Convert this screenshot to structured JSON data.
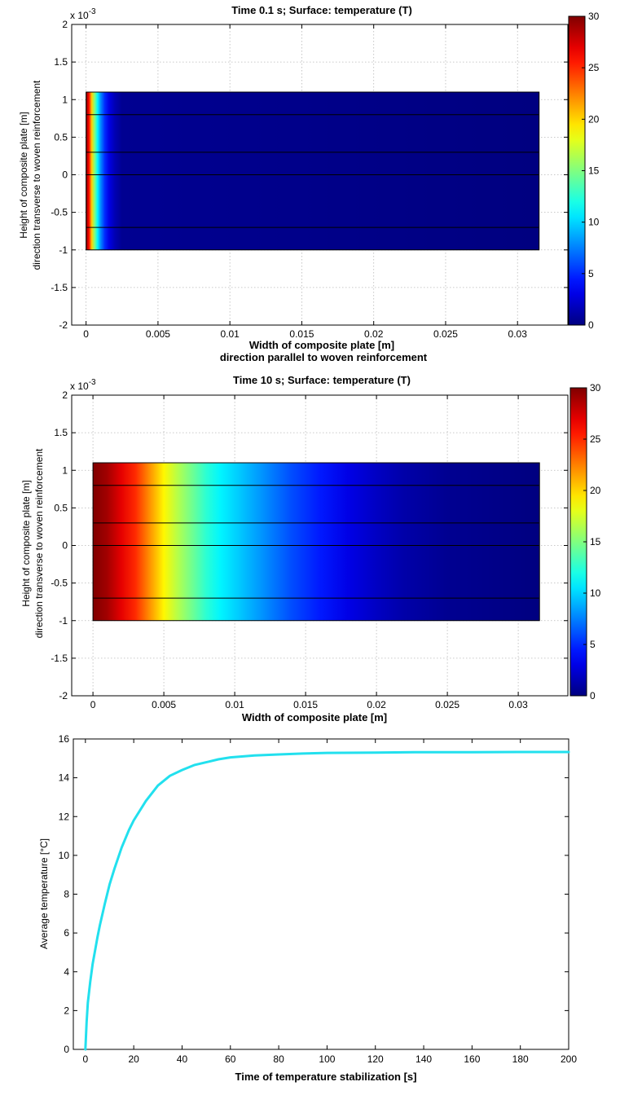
{
  "colors": {
    "curve": "#22e0ee",
    "outline": "#000000",
    "grid": "#b8b8b8",
    "colormap": "jet"
  },
  "chart_data": [
    {
      "type": "heatmap",
      "title": "Time 0.1 s; Surface: temperature (T)",
      "xlabel": "Width of composite plate [m]",
      "xlabel2": "direction parallel to woven reinforcement",
      "ylabel": "Height of composite plate [m]",
      "ylabel2": "direction transverse to woven reinforcement",
      "y_exponent_base": "x 10",
      "y_exponent_power": "-3",
      "xlim": [
        -0.001,
        0.0335
      ],
      "ylim": [
        -2,
        2
      ],
      "xticks": [
        0,
        0.005,
        0.01,
        0.015,
        0.02,
        0.025,
        0.03
      ],
      "xtick_labels": [
        "0",
        "0.005",
        "0.01",
        "0.015",
        "0.02",
        "0.025",
        "0.03"
      ],
      "yticks": [
        -2,
        -1.5,
        -1,
        -0.5,
        0,
        0.5,
        1,
        1.5,
        2
      ],
      "ytick_labels": [
        "-2",
        "-1.5",
        "-1",
        "-0.5",
        "0",
        "0.5",
        "1",
        "1.5",
        "2"
      ],
      "grid": true,
      "plate": {
        "x": [
          0,
          0.0315
        ],
        "y": [
          -1,
          1.1
        ],
        "layer_lines_y": [
          0.8,
          0.3,
          0,
          -0.7
        ]
      },
      "temperature_profile": {
        "x": [
          0,
          0.0002,
          0.0004,
          0.0006,
          0.0008,
          0.001,
          0.0013,
          0.0016,
          0.002,
          0.0025,
          0.0315
        ],
        "T": [
          30,
          26,
          20,
          15,
          11,
          8,
          5,
          3,
          1.5,
          0.5,
          0
        ]
      },
      "colorbar": {
        "min": 0,
        "max": 30,
        "ticks": [
          0,
          5,
          10,
          15,
          20,
          25,
          30
        ],
        "tick_labels": [
          "0",
          "5",
          "10",
          "15",
          "20",
          "25",
          "30"
        ]
      }
    },
    {
      "type": "heatmap",
      "title": "Time 10 s; Surface: temperature (T)",
      "xlabel": "Width of composite plate [m]",
      "ylabel": "Height of composite plate [m]",
      "ylabel2": "direction transverse to woven reinforcement",
      "y_exponent_base": "x 10",
      "y_exponent_power": "-3",
      "xlim": [
        -0.0015,
        0.0335
      ],
      "ylim": [
        -2,
        2
      ],
      "xticks": [
        0,
        0.005,
        0.01,
        0.015,
        0.02,
        0.025,
        0.03
      ],
      "xtick_labels": [
        "0",
        "0.005",
        "0.01",
        "0.015",
        "0.02",
        "0.025",
        "0.03"
      ],
      "yticks": [
        -2,
        -1.5,
        -1,
        -0.5,
        0,
        0.5,
        1,
        1.5,
        2
      ],
      "ytick_labels": [
        "-2",
        "-1.5",
        "-1",
        "-0.5",
        "0",
        "0.5",
        "1",
        "1.5",
        "2"
      ],
      "grid": true,
      "plate": {
        "x": [
          0,
          0.0315
        ],
        "y": [
          -1,
          1.1
        ],
        "layer_lines_y": [
          0.8,
          0.3,
          0,
          -0.7
        ]
      },
      "temperature_profile": {
        "x": [
          0,
          0.001,
          0.002,
          0.003,
          0.004,
          0.005,
          0.006,
          0.007,
          0.008,
          0.009,
          0.01,
          0.012,
          0.014,
          0.016,
          0.018,
          0.02,
          0.022,
          0.025,
          0.0315
        ],
        "T": [
          30,
          29,
          27,
          25,
          22,
          19,
          16.5,
          14.5,
          12.5,
          11,
          10,
          8,
          6,
          4.5,
          3,
          2,
          1.2,
          0.5,
          0
        ]
      },
      "colorbar": {
        "min": 0,
        "max": 30,
        "ticks": [
          0,
          5,
          10,
          15,
          20,
          25,
          30
        ],
        "tick_labels": [
          "0",
          "5",
          "10",
          "15",
          "20",
          "25",
          "30"
        ]
      }
    },
    {
      "type": "line",
      "xlabel": "Time of temperature stabilization [s]",
      "ylabel": "Average temperature [°C]",
      "xlim": [
        -5,
        200
      ],
      "ylim": [
        0,
        16
      ],
      "xticks": [
        0,
        20,
        40,
        60,
        80,
        100,
        120,
        140,
        160,
        180,
        200
      ],
      "xtick_labels": [
        "0",
        "20",
        "40",
        "60",
        "80",
        "100",
        "120",
        "140",
        "160",
        "180",
        "200"
      ],
      "yticks": [
        0,
        2,
        4,
        6,
        8,
        10,
        12,
        14,
        16
      ],
      "ytick_labels": [
        "0",
        "2",
        "4",
        "6",
        "8",
        "10",
        "12",
        "14",
        "16"
      ],
      "grid": false,
      "series": [
        {
          "x": [
            0,
            0.5,
            1,
            2,
            3,
            4,
            5,
            6,
            8,
            10,
            12,
            15,
            18,
            20,
            25,
            30,
            35,
            40,
            45,
            50,
            55,
            60,
            70,
            80,
            90,
            100,
            120,
            140,
            160,
            180,
            200
          ],
          "y": [
            0,
            1.4,
            2.4,
            3.5,
            4.4,
            5.1,
            5.8,
            6.4,
            7.5,
            8.5,
            9.3,
            10.4,
            11.3,
            11.8,
            12.8,
            13.6,
            14.1,
            14.4,
            14.65,
            14.8,
            14.95,
            15.05,
            15.15,
            15.2,
            15.25,
            15.28,
            15.3,
            15.32,
            15.32,
            15.33,
            15.33
          ]
        }
      ]
    }
  ]
}
